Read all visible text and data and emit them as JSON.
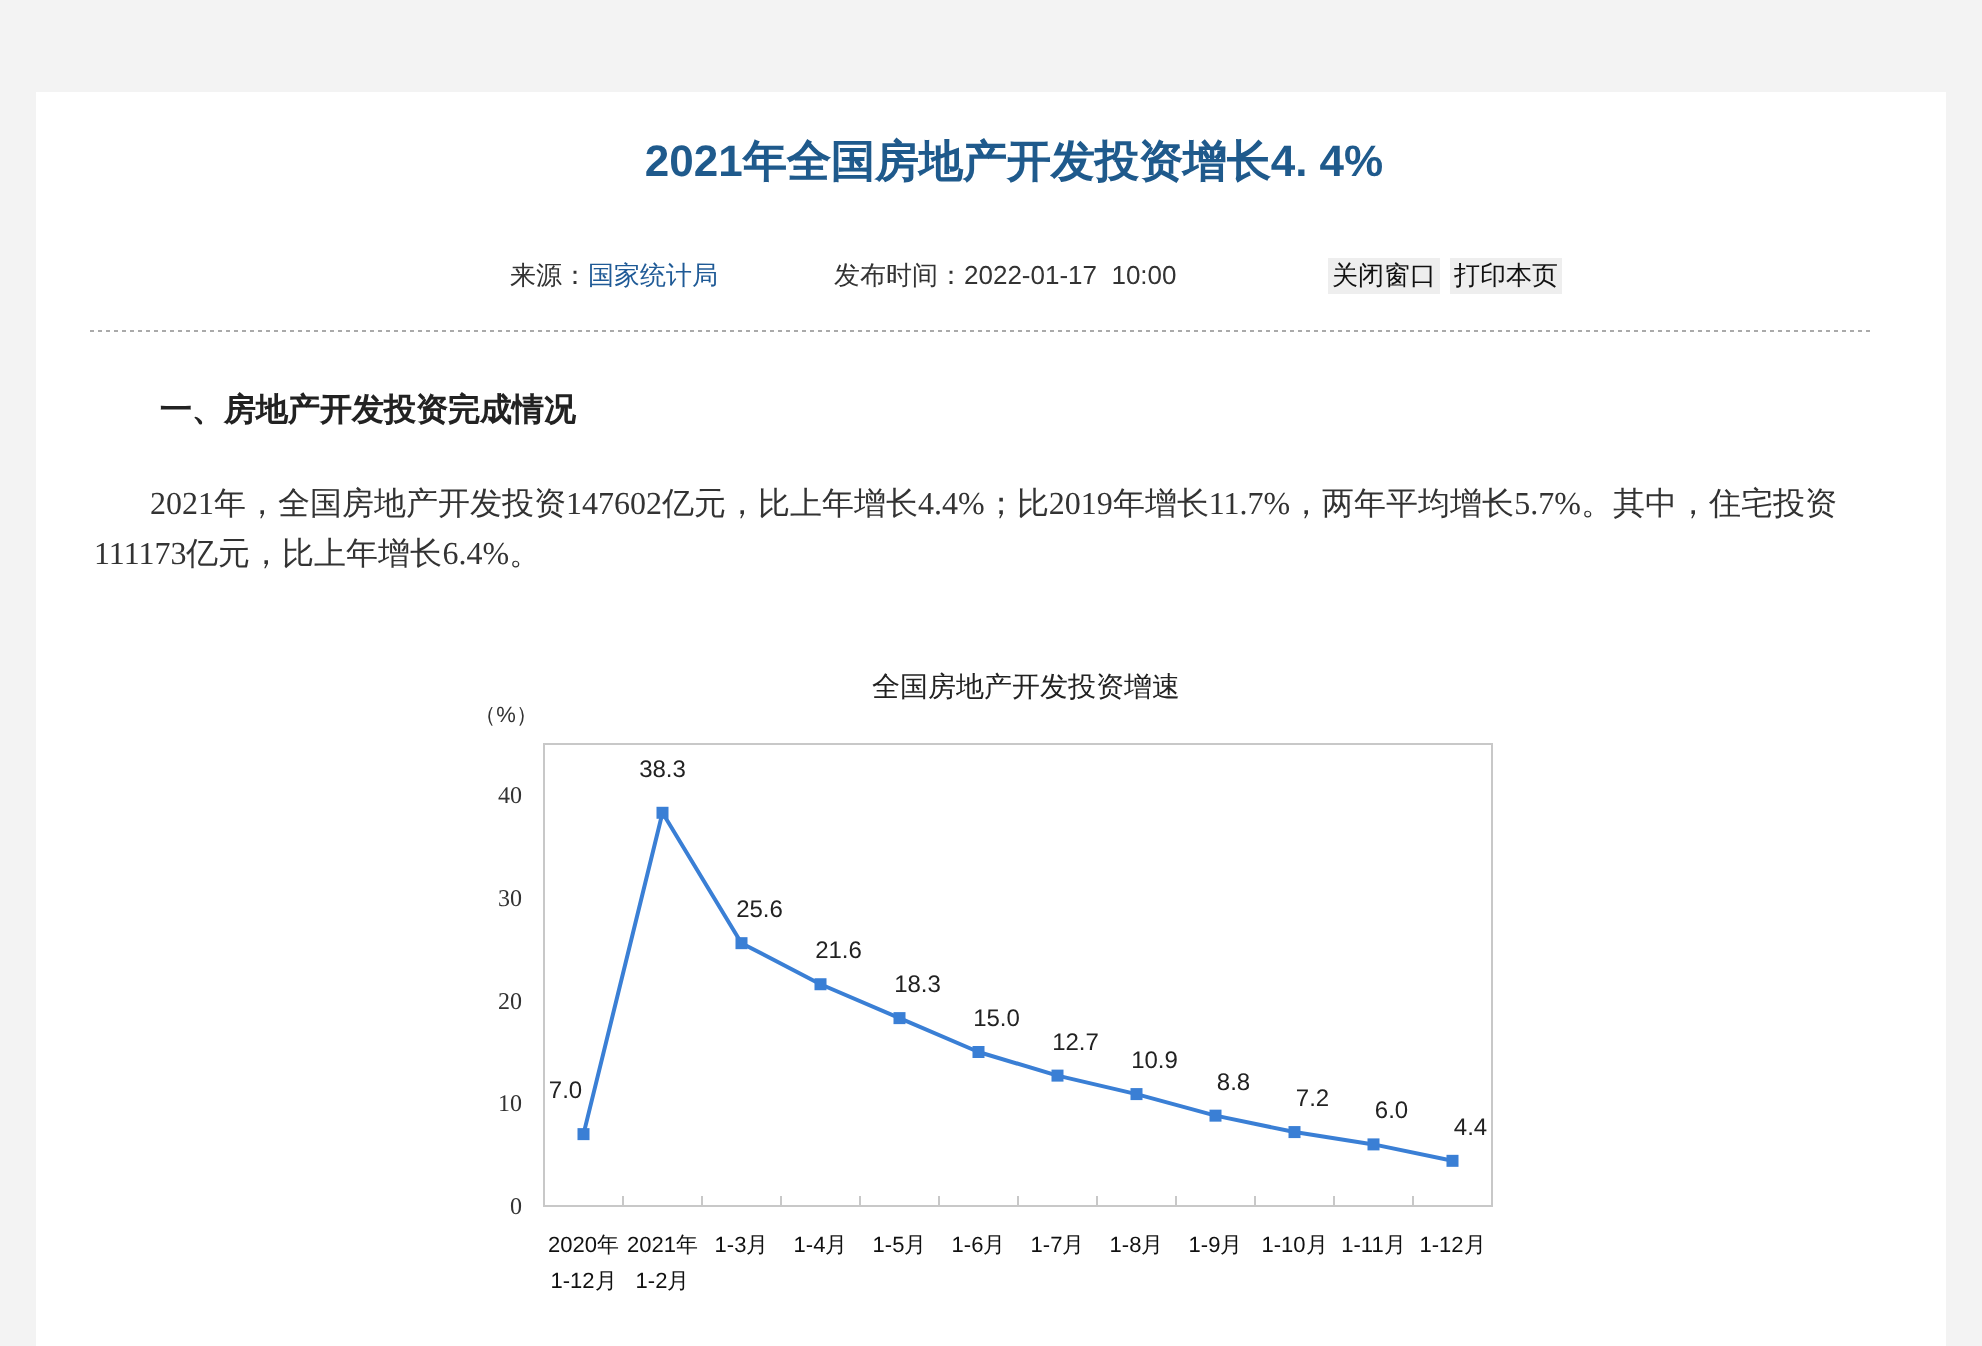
{
  "chart_data": {
    "type": "line",
    "title": "全国房地产开发投资增速",
    "ylabel": "（%）",
    "categories": [
      "2020年\n1-12月",
      "2021年\n1-2月",
      "1-3月",
      "1-4月",
      "1-5月",
      "1-6月",
      "1-7月",
      "1-8月",
      "1-9月",
      "1-10月",
      "1-11月",
      "1-12月"
    ],
    "series": [
      {
        "color": "#3a7fd5",
        "values": [
          7.0,
          38.3,
          25.6,
          21.6,
          18.3,
          15.0,
          12.7,
          10.9,
          8.8,
          7.2,
          6.0,
          4.4
        ],
        "value_labels": [
          "7.0",
          "38.3",
          "25.6",
          "21.6",
          "18.3",
          "15.0",
          "12.7",
          "10.9",
          "8.8",
          "7.2",
          "6.0",
          "4.4"
        ]
      }
    ],
    "ylim": [
      0,
      45
    ],
    "yticks": [
      0,
      10,
      20,
      30,
      40
    ],
    "marker": "square",
    "line_style": "solid",
    "annotations": [
      "2021年全国房地产开发投资增长4. 4%",
      "来源：",
      "国家统计局",
      "发布时间：2022-01-17  10:00",
      "关闭窗口",
      "打印本页",
      "一、房地产开发投资完成情况",
      "2021年，全国房地产开发投资147602亿元，比上年增长4.4%；比2019年增长11.7%，两年平均增长5.7%。其中，住宅投资111173亿元，比上年增长6.4%。"
    ]
  }
}
